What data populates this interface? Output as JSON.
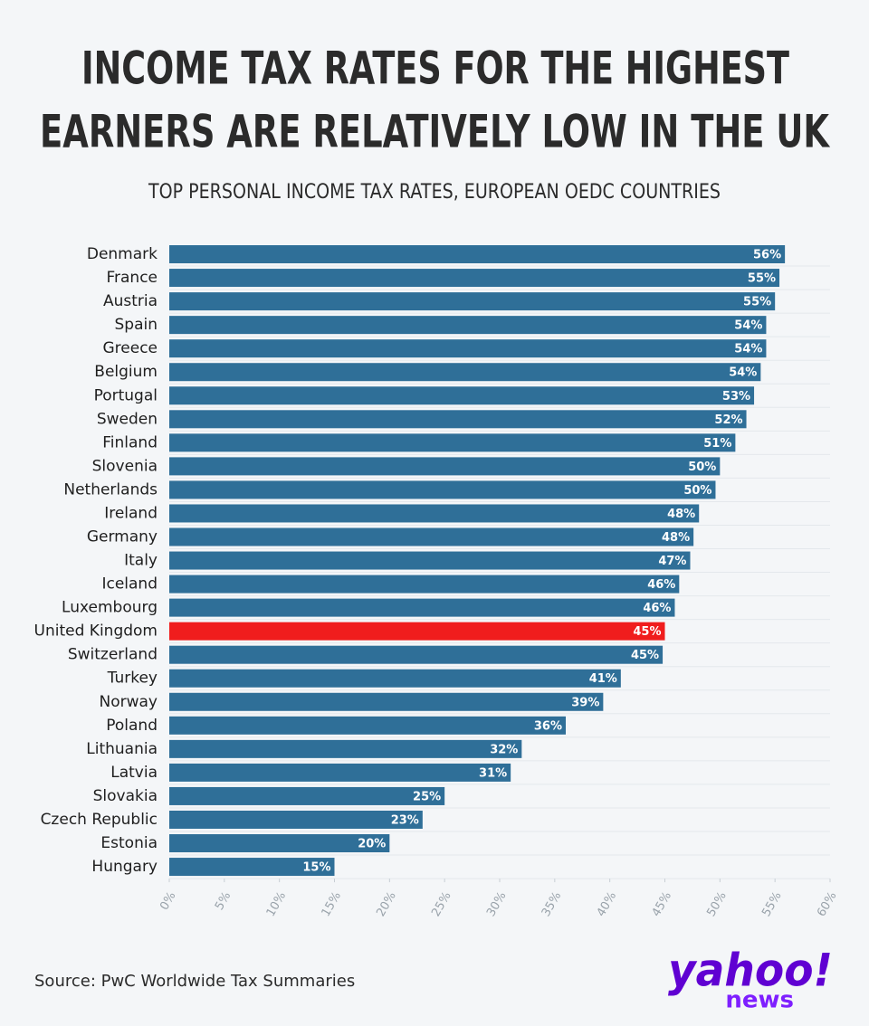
{
  "chart_data": {
    "type": "hbar",
    "title": [
      "INCOME TAX RATES FOR THE HIGHEST",
      "EARNERS ARE RELATIVELY LOW IN THE UK"
    ],
    "subtitle": "TOP PERSONAL INCOME TAX RATES, EUROPEAN OEDC COUNTRIES",
    "categories": [
      "Denmark",
      "France",
      "Austria",
      "Spain",
      "Greece",
      "Belgium",
      "Portugal",
      "Sweden",
      "Finland",
      "Slovenia",
      "Netherlands",
      "Ireland",
      "Germany",
      "Italy",
      "Iceland",
      "Luxembourg",
      "United Kingdom",
      "Switzerland",
      "Turkey",
      "Norway",
      "Poland",
      "Lithuania",
      "Latvia",
      "Slovakia",
      "Czech Republic",
      "Estonia",
      "Hungary"
    ],
    "values": [
      55.9,
      55.4,
      55.0,
      54.2,
      54.2,
      53.7,
      53.1,
      52.4,
      51.4,
      50.0,
      49.6,
      48.1,
      47.6,
      47.3,
      46.3,
      45.9,
      45.0,
      44.8,
      41.0,
      39.4,
      36.0,
      32.0,
      31.0,
      25.0,
      23.0,
      20.0,
      15.0
    ],
    "value_labels": [
      "56%",
      "55%",
      "55%",
      "54%",
      "54%",
      "54%",
      "53%",
      "52%",
      "51%",
      "50%",
      "50%",
      "48%",
      "48%",
      "47%",
      "46%",
      "46%",
      "45%",
      "45%",
      "41%",
      "39%",
      "36%",
      "32%",
      "31%",
      "25%",
      "23%",
      "20%",
      "15%"
    ],
    "colors": [
      "#2f6f98",
      "#2f6f98",
      "#2f6f98",
      "#2f6f98",
      "#2f6f98",
      "#2f6f98",
      "#2f6f98",
      "#2f6f98",
      "#2f6f98",
      "#2f6f98",
      "#2f6f98",
      "#2f6f98",
      "#2f6f98",
      "#2f6f98",
      "#2f6f98",
      "#2f6f98",
      "#f01d1d",
      "#2f6f98",
      "#2f6f98",
      "#2f6f98",
      "#2f6f98",
      "#2f6f98",
      "#2f6f98",
      "#2f6f98",
      "#2f6f98",
      "#2f6f98",
      "#2f6f98"
    ],
    "xlim": [
      0,
      60
    ],
    "xticks": [
      {
        "value": 0,
        "label": "0%"
      },
      {
        "value": 5,
        "label": "5%"
      },
      {
        "value": 10,
        "label": "10%"
      },
      {
        "value": 15,
        "label": "15%"
      },
      {
        "value": 20,
        "label": "20%"
      },
      {
        "value": 25,
        "label": "25%"
      },
      {
        "value": 30,
        "label": "30%"
      },
      {
        "value": 35,
        "label": "35%"
      },
      {
        "value": 40,
        "label": "40%"
      },
      {
        "value": 45,
        "label": "45%"
      },
      {
        "value": 50,
        "label": "50%"
      },
      {
        "value": 55,
        "label": "55%"
      },
      {
        "value": 60,
        "label": "60%"
      }
    ],
    "source": "Source: PwC Worldwide Tax Summaries"
  },
  "logo": {
    "brand": "yahoo!",
    "product": "news"
  }
}
